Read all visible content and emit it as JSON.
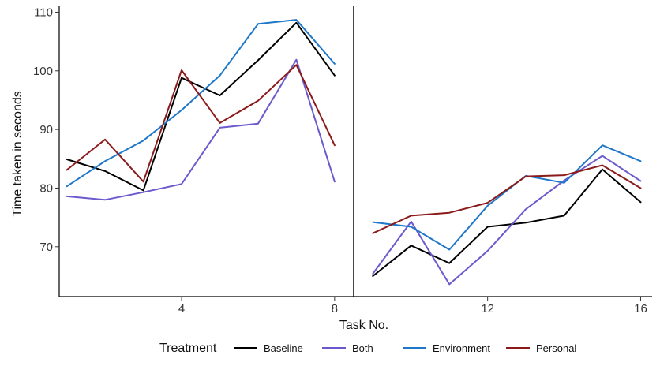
{
  "chart_data": {
    "type": "line",
    "xlabel": "Task No.",
    "ylabel": "Time taken in seconds",
    "xlim": [
      0.8,
      16.3
    ],
    "ylim": [
      61.5,
      111
    ],
    "x_ticks": [
      4,
      8,
      12,
      16
    ],
    "y_ticks": [
      70,
      80,
      90,
      100,
      110
    ],
    "grid": false,
    "break_at_x": 8.5,
    "segments": [
      [
        1,
        2,
        3,
        4,
        5,
        6,
        7,
        8
      ],
      [
        9,
        10,
        11,
        12,
        13,
        14,
        15,
        16
      ]
    ],
    "x": [
      1,
      2,
      3,
      4,
      5,
      6,
      7,
      8,
      9,
      10,
      11,
      12,
      13,
      14,
      15,
      16
    ],
    "legend": {
      "title": "Treatment",
      "position": "bottom"
    },
    "series": [
      {
        "name": "Baseline",
        "color": "#000000",
        "values": [
          84.9,
          82.9,
          79.6,
          98.8,
          95.8,
          101.8,
          108.2,
          99.2,
          65.0,
          70.2,
          67.2,
          73.4,
          74.1,
          75.3,
          83.2,
          77.6
        ]
      },
      {
        "name": "Both",
        "color": "#6a5acd",
        "values": [
          78.6,
          78.0,
          79.3,
          80.7,
          90.3,
          91.0,
          101.9,
          81.1,
          65.4,
          74.3,
          63.6,
          69.3,
          76.4,
          81.3,
          85.5,
          81.2
        ]
      },
      {
        "name": "Environment",
        "color": "#1f77c9",
        "values": [
          80.3,
          84.6,
          88.1,
          93.3,
          99.2,
          108.0,
          108.7,
          101.2,
          74.2,
          73.4,
          69.5,
          77.0,
          82.1,
          80.9,
          87.3,
          84.6
        ]
      },
      {
        "name": "Personal",
        "color": "#8b1a1a",
        "values": [
          83.1,
          88.3,
          81.1,
          100.1,
          91.1,
          94.9,
          101.0,
          87.3,
          72.3,
          75.3,
          75.8,
          77.5,
          82.0,
          82.2,
          83.9,
          80.0
        ]
      }
    ]
  }
}
